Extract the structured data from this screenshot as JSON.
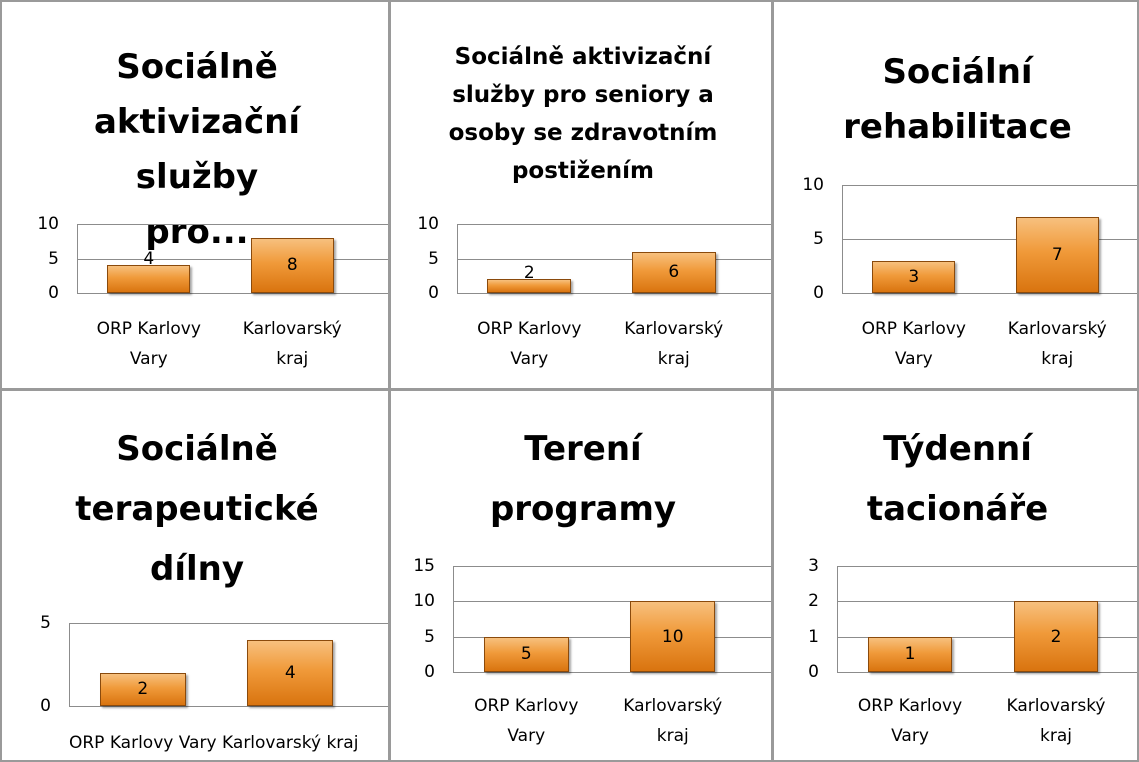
{
  "chart_data": [
    {
      "type": "bar",
      "title": "Sociálně aktivizační služby pro...",
      "categories": [
        "ORP Karlovy Vary",
        "Karlovarský kraj"
      ],
      "values": [
        4,
        8
      ],
      "color": "#f09a3a",
      "ylim": [
        0,
        10
      ],
      "yticks": [
        0,
        5,
        10
      ],
      "grid": true
    },
    {
      "type": "bar",
      "title": "Sociálně aktivizační služby pro seniory a osoby se zdravotním postižením",
      "categories": [
        "ORP Karlovy Vary",
        "Karlovarský kraj"
      ],
      "values": [
        2,
        6
      ],
      "color": "#f09a3a",
      "ylim": [
        0,
        10
      ],
      "yticks": [
        0,
        5,
        10
      ],
      "grid": true
    },
    {
      "type": "bar",
      "title": "Sociální rehabilitace",
      "categories": [
        "ORP Karlovy Vary",
        "Karlovarský kraj"
      ],
      "values": [
        3,
        7
      ],
      "color": "#f09a3a",
      "ylim": [
        0,
        10
      ],
      "yticks": [
        0,
        5,
        10
      ],
      "grid": true
    },
    {
      "type": "bar",
      "title": "Sociálně terapeutické dílny",
      "categories": [
        "ORP Karlovy Vary",
        "Karlovarský kraj"
      ],
      "values": [
        2,
        4
      ],
      "color": "#f09a3a",
      "ylim": [
        0,
        5
      ],
      "yticks": [
        0,
        5
      ],
      "grid": true
    },
    {
      "type": "bar",
      "title": "Terení programy",
      "categories": [
        "ORP Karlovy Vary",
        "Karlovarský kraj"
      ],
      "values": [
        5,
        10
      ],
      "color": "#f09a3a",
      "ylim": [
        0,
        15
      ],
      "yticks": [
        0,
        5,
        10,
        15
      ],
      "grid": true
    },
    {
      "type": "bar",
      "title": "Týdenní tacionáře",
      "categories": [
        "ORP Karlovy Vary",
        "Karlovarský kraj"
      ],
      "values": [
        1,
        2
      ],
      "color": "#f09a3a",
      "ylim": [
        0,
        3
      ],
      "yticks": [
        0,
        1,
        2,
        3
      ],
      "grid": true
    }
  ]
}
